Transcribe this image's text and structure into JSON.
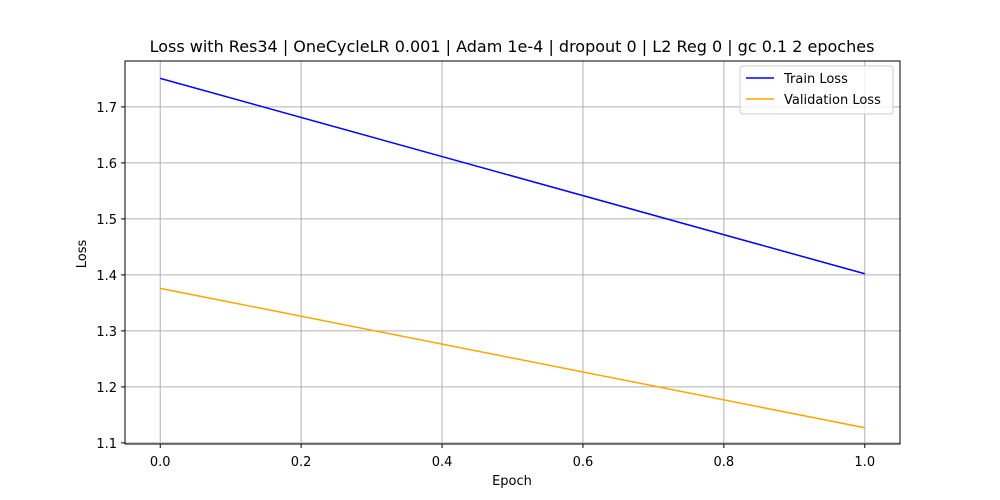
{
  "chart_data": {
    "type": "line",
    "title": "Loss with Res34 | OneCycleLR 0.001 | Adam 1e-4 | dropout 0 | L2 Reg 0 | gc 0.1 2 epoches",
    "xlabel": "Epoch",
    "ylabel": "Loss",
    "x": [
      0.0,
      1.0
    ],
    "xlim": [
      -0.05,
      1.05
    ],
    "ylim": [
      1.098,
      1.782
    ],
    "xticks": [
      0.0,
      0.2,
      0.4,
      0.6,
      0.8,
      1.0
    ],
    "xtick_labels": [
      "0.0",
      "0.2",
      "0.4",
      "0.6",
      "0.8",
      "1.0"
    ],
    "yticks": [
      1.1,
      1.2,
      1.3,
      1.4,
      1.5,
      1.6,
      1.7
    ],
    "ytick_labels": [
      "1.1",
      "1.2",
      "1.3",
      "1.4",
      "1.5",
      "1.6",
      "1.7"
    ],
    "grid": true,
    "legend_position": "top-right",
    "series": [
      {
        "name": "Train Loss",
        "values": [
          1.751,
          1.402
        ],
        "color": "#0000ff"
      },
      {
        "name": "Validation Loss",
        "values": [
          1.376,
          1.127
        ],
        "color": "#ffa500"
      }
    ]
  }
}
